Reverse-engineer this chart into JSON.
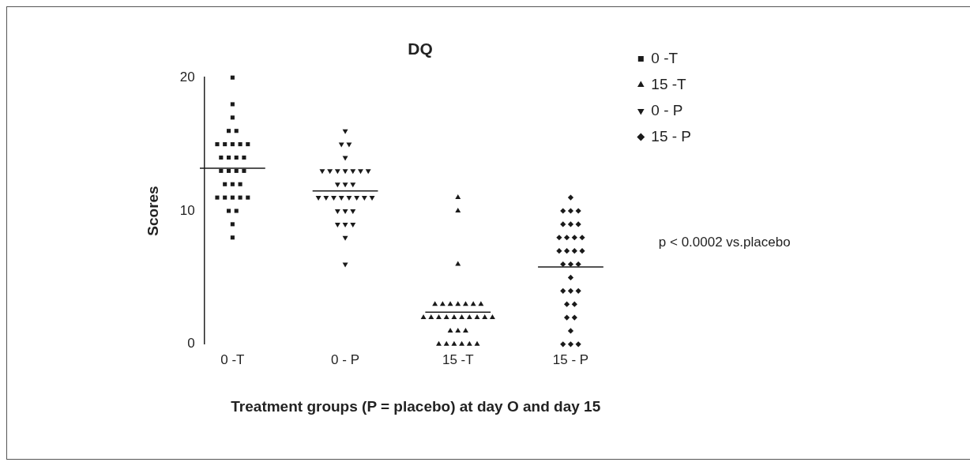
{
  "chart_data": {
    "type": "scatter",
    "title": "DQ",
    "xlabel": "Treatment groups (P = placebo) at day O and day 15",
    "ylabel": "Scores",
    "categories": [
      "0 -T",
      "0 - P",
      "15 -T",
      "15 - P"
    ],
    "series": [
      {
        "name": "0 -T",
        "color": "#1a1a1a",
        "marker": "square",
        "x": [
          "0 -T",
          "0 -T",
          "0 -T",
          "0 -T",
          "0 -T",
          "0 -T",
          "0 -T",
          "0 -T",
          "0 -T",
          "0 -T",
          "0 -T",
          "0 -T",
          "0 -T",
          "0 -T",
          "0 -T",
          "0 -T",
          "0 -T",
          "0 -T",
          "0 -T",
          "0 -T",
          "0 -T",
          "0 -T",
          "0 -T",
          "0 -T",
          "0 -T",
          "0 -T",
          "0 -T",
          "0 -T",
          "0 -T",
          "0 -T"
        ],
        "values": [
          20,
          18,
          17,
          16,
          16,
          15,
          15,
          15,
          15,
          15,
          14,
          14,
          14,
          14,
          13,
          13,
          13,
          13,
          12,
          12,
          12,
          11,
          11,
          11,
          11,
          11,
          10,
          10,
          9,
          8
        ]
      },
      {
        "name": "15 -T",
        "color": "#1a1a1a",
        "marker": "triangle",
        "x": [
          "15 -T",
          "15 -T",
          "15 -T",
          "15 -T",
          "15 -T",
          "15 -T",
          "15 -T",
          "15 -T",
          "15 -T",
          "15 -T",
          "15 -T",
          "15 -T",
          "15 -T",
          "15 -T",
          "15 -T",
          "15 -T",
          "15 -T",
          "15 -T",
          "15 -T",
          "15 -T",
          "15 -T",
          "15 -T",
          "15 -T",
          "15 -T",
          "15 -T",
          "15 -T",
          "15 -T",
          "15 -T",
          "15 -T"
        ],
        "values": [
          11,
          10,
          6,
          3,
          3,
          3,
          3,
          3,
          3,
          3,
          2,
          2,
          2,
          2,
          2,
          2,
          2,
          2,
          2,
          2,
          1,
          1,
          1,
          0,
          0,
          0,
          0,
          0,
          0
        ]
      },
      {
        "name": "0 - P",
        "color": "#1a1a1a",
        "marker": "triangle-down",
        "x": [
          "0 - P",
          "0 - P",
          "0 - P",
          "0 - P",
          "0 - P",
          "0 - P",
          "0 - P",
          "0 - P",
          "0 - P",
          "0 - P",
          "0 - P",
          "0 - P",
          "0 - P",
          "0 - P",
          "0 - P",
          "0 - P",
          "0 - P",
          "0 - P",
          "0 - P",
          "0 - P",
          "0 - P",
          "0 - P",
          "0 - P",
          "0 - P",
          "0 - P",
          "0 - P",
          "0 - P",
          "0 - P",
          "0 - P",
          "0 - P"
        ],
        "values": [
          16,
          15,
          15,
          14,
          13,
          13,
          13,
          13,
          13,
          13,
          13,
          12,
          12,
          12,
          11,
          11,
          11,
          11,
          11,
          11,
          11,
          11,
          10,
          10,
          10,
          9,
          9,
          9,
          8,
          6
        ]
      },
      {
        "name": "15 - P",
        "color": "#1a1a1a",
        "marker": "diamond",
        "x": [
          "15 - P",
          "15 - P",
          "15 - P",
          "15 - P",
          "15 - P",
          "15 - P",
          "15 - P",
          "15 - P",
          "15 - P",
          "15 - P",
          "15 - P",
          "15 - P",
          "15 - P",
          "15 - P",
          "15 - P",
          "15 - P",
          "15 - P",
          "15 - P",
          "15 - P",
          "15 - P",
          "15 - P",
          "15 - P",
          "15 - P",
          "15 - P",
          "15 - P",
          "15 - P",
          "15 - P",
          "15 - P",
          "15 - P",
          "15 - P"
        ],
        "values": [
          11,
          10,
          10,
          10,
          9,
          9,
          9,
          8,
          8,
          8,
          8,
          7,
          7,
          7,
          7,
          6,
          6,
          6,
          5,
          4,
          4,
          4,
          3,
          3,
          2,
          2,
          1,
          0,
          0,
          0
        ]
      }
    ],
    "ref_lines": [
      {
        "axis": "y",
        "value": 13.2,
        "color": "#1a1a1a"
      },
      {
        "axis": "y",
        "value": 11.5,
        "color": "#1a1a1a"
      },
      {
        "axis": "y",
        "value": 2.4,
        "color": "#1a1a1a"
      },
      {
        "axis": "y",
        "value": 5.8,
        "color": "#1a1a1a"
      }
    ],
    "ylim": [
      0,
      20
    ],
    "yticks": [
      0,
      10,
      20
    ],
    "grid": false,
    "legend": "right",
    "annotations": [
      "p < 0.0002 vs.placebo"
    ]
  }
}
